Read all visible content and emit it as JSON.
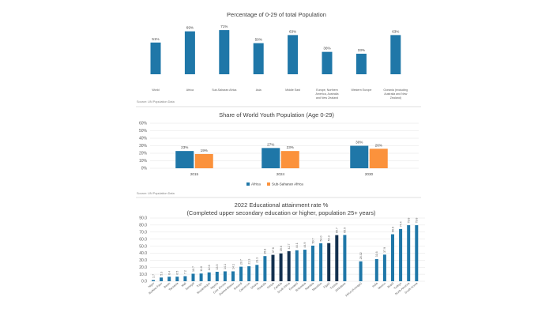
{
  "colors": {
    "blue": "#1f77a8",
    "orange": "#fb923c",
    "navy": "#13304f",
    "grid": "#e3e3e3",
    "divider": "#bfbfbf"
  },
  "chart_data": [
    {
      "type": "bar",
      "title": "Percentage of 0-29 of total Population",
      "categories": [
        "World",
        "Africa",
        "Sub-Saharan Africa",
        "Asia",
        "Middle East",
        "Europe, Northern America, Australia and New Zealand",
        "Western Europe",
        "Oceania (excluding Australia and New Zealand)"
      ],
      "category_lines": [
        [
          "World"
        ],
        [
          "Africa"
        ],
        [
          "Sub-Saharan Africa"
        ],
        [
          "Asia"
        ],
        [
          "Middle East"
        ],
        [
          "Europe, Northern",
          "America, Australia",
          "and New Zealand"
        ],
        [
          "Western Europe"
        ],
        [
          "Oceania (excluding",
          "Australia and New",
          "Zealand)"
        ]
      ],
      "values": [
        51,
        69,
        71,
        50,
        63,
        36,
        33,
        63
      ],
      "value_labels": [
        "51%",
        "69%",
        "71%",
        "50%",
        "63%",
        "36%",
        "33%",
        "63%"
      ],
      "ylim": [
        0,
        80
      ],
      "source": "Source: UN Population Data"
    },
    {
      "type": "bar",
      "title": "Share of World Youth Population (Age 0-29)",
      "categories": [
        "2015",
        "2024",
        "2030"
      ],
      "series": [
        {
          "name": "Africa",
          "values": [
            23,
            27,
            30
          ],
          "labels": [
            "23%",
            "27%",
            "30%"
          ]
        },
        {
          "name": "Sub-Saharan Africa",
          "values": [
            19,
            23,
            26
          ],
          "labels": [
            "19%",
            "23%",
            "26%"
          ]
        }
      ],
      "yticks": [
        "0%",
        "10%",
        "20%",
        "30%",
        "40%",
        "50%",
        "60%"
      ],
      "ylim": [
        0,
        60
      ],
      "legend": "bottom",
      "source": "Source: UN Population Data"
    },
    {
      "type": "bar",
      "title": "2022 Educational attainment rate %",
      "subtitle": "(Completed upper secondary education or higher, population 25+ years)",
      "categories": [
        "Niger",
        "Burkina Faso",
        "Benin",
        "Tanzania",
        "Mali",
        "Senegal",
        "Togo",
        "Mozambique",
        "Nigeria",
        "Cote d'Ivoire",
        "Guinea-Bissau",
        "Burundi",
        "Cameroon",
        "Ghana",
        "Rwanda",
        "Kenya",
        "Zambia",
        "South Africa",
        "Eswatini",
        "Botswana",
        "Namibia",
        "Mauritius",
        "Egypt",
        "Tunisia",
        "Zimbabwe",
        "",
        "Africa (Average)",
        "",
        "India",
        "Mexico",
        "Brazil",
        "Turkiye",
        "North America",
        "South Korea"
      ],
      "values": [
        1.7,
        5.3,
        6.4,
        6.5,
        7.2,
        10.7,
        11.0,
        12.6,
        13.5,
        14.1,
        14.1,
        20.7,
        21.3,
        23.3,
        35.8,
        37.6,
        39.6,
        42.7,
        44.1,
        44.9,
        50.7,
        54.0,
        54.3,
        65.7,
        65.9,
        null,
        28.32,
        null,
        31.6,
        37.9,
        66.9,
        74.4,
        79.8,
        79.8
      ],
      "value_labels": [
        "1.7",
        "5.3",
        "6.4",
        "6.5",
        "7.2",
        "10.7",
        "11.0",
        "12.6",
        "13.5",
        "14.1",
        "14.1",
        "20.7",
        "21.3",
        "23.3",
        "35.8",
        "37.6",
        "39.6",
        "42.7",
        "44.1",
        "44.9",
        "50.7",
        "54.0",
        "54.3",
        "65.7",
        "65.9",
        "",
        "28.32",
        "",
        "31.6",
        "37.9",
        "66.9",
        "74.4",
        "79.8",
        "79.8"
      ],
      "highlight": [
        false,
        false,
        false,
        false,
        false,
        false,
        false,
        false,
        false,
        false,
        false,
        false,
        false,
        false,
        false,
        true,
        true,
        true,
        false,
        false,
        false,
        false,
        true,
        true,
        false,
        false,
        false,
        false,
        false,
        false,
        false,
        false,
        false,
        false
      ],
      "yticks": [
        "0.0",
        "10.0",
        "20.0",
        "30.0",
        "40.0",
        "50.0",
        "60.0",
        "70.0",
        "80.0",
        "90.0"
      ],
      "ylim": [
        0,
        90
      ]
    }
  ]
}
